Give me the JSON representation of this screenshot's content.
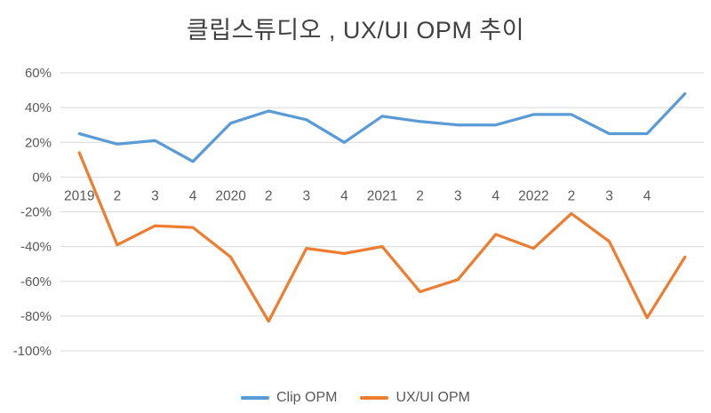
{
  "title": "클립스튜디오 , UX/UI OPM 추이",
  "chart_data": {
    "type": "line",
    "categories": [
      "2019",
      "2",
      "3",
      "4",
      "2020",
      "2",
      "3",
      "4",
      "2021",
      "2",
      "3",
      "4",
      "2022",
      "2",
      "3",
      "4",
      ""
    ],
    "series": [
      {
        "name": "Clip OPM",
        "color": "#5B9BD5",
        "values": [
          25,
          19,
          21,
          9,
          31,
          38,
          33,
          20,
          35,
          32,
          30,
          30,
          36,
          36,
          25,
          25,
          48
        ]
      },
      {
        "name": "UX/UI OPM",
        "color": "#ED7D31",
        "values": [
          14,
          -39,
          -28,
          -29,
          -46,
          -83,
          -41,
          -44,
          -40,
          -66,
          -59,
          -33,
          -41,
          -21,
          -37,
          -81,
          -46
        ]
      }
    ],
    "title": "클립스튜디오 , UX/UI OPM 추이",
    "xlabel": "",
    "ylabel": "",
    "ylim": [
      -100,
      60
    ],
    "yticks": [
      60,
      40,
      20,
      0,
      -20,
      -40,
      -60,
      -80,
      -100
    ],
    "ytick_suffix": "%",
    "grid": true,
    "grid_color": "#D9D9D9",
    "axis_label_color": "#595959",
    "legend_position": "bottom"
  }
}
